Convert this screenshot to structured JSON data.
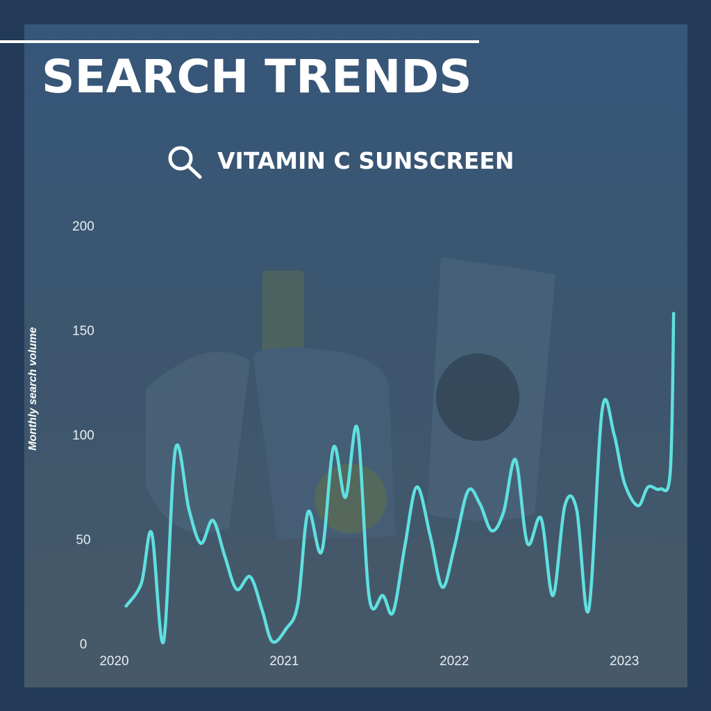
{
  "chart_data": {
    "type": "line",
    "title": "SEARCH TRENDS",
    "subtitle": "VITAMIN C SUNSCREEN",
    "y_label": "Monthly search volume",
    "color": "#5fe0e0",
    "x": [
      2020.07,
      2020.16,
      2020.22,
      2020.29,
      2020.36,
      2020.44,
      2020.51,
      2020.58,
      2020.65,
      2020.72,
      2020.8,
      2020.87,
      2020.93,
      2021.01,
      2021.08,
      2021.14,
      2021.22,
      2021.29,
      2021.36,
      2021.43,
      2021.5,
      2021.58,
      2021.64,
      2021.71,
      2021.78,
      2021.86,
      2021.93,
      2022.0,
      2022.08,
      2022.15,
      2022.22,
      2022.29,
      2022.36,
      2022.43,
      2022.51,
      2022.58,
      2022.65,
      2022.72,
      2022.79,
      2022.87,
      2022.94,
      2023.0,
      2023.08,
      2023.14,
      2023.21,
      2023.27,
      2023.29
    ],
    "values": [
      18,
      29,
      53,
      1,
      93,
      64,
      48,
      59,
      42,
      26,
      32,
      16,
      1,
      7,
      19,
      63,
      44,
      94,
      70,
      103,
      22,
      23,
      15,
      47,
      75,
      51,
      27,
      46,
      73,
      67,
      54,
      63,
      88,
      48,
      60,
      23,
      66,
      64,
      16,
      112,
      100,
      77,
      66,
      75,
      74,
      82,
      158
    ],
    "xlim": [
      2019.9,
      2023.33
    ],
    "ylim": [
      0,
      200
    ],
    "xticks": [
      2020,
      2021,
      2022,
      2023
    ],
    "yticks": [
      0,
      50,
      100,
      150,
      200
    ]
  }
}
